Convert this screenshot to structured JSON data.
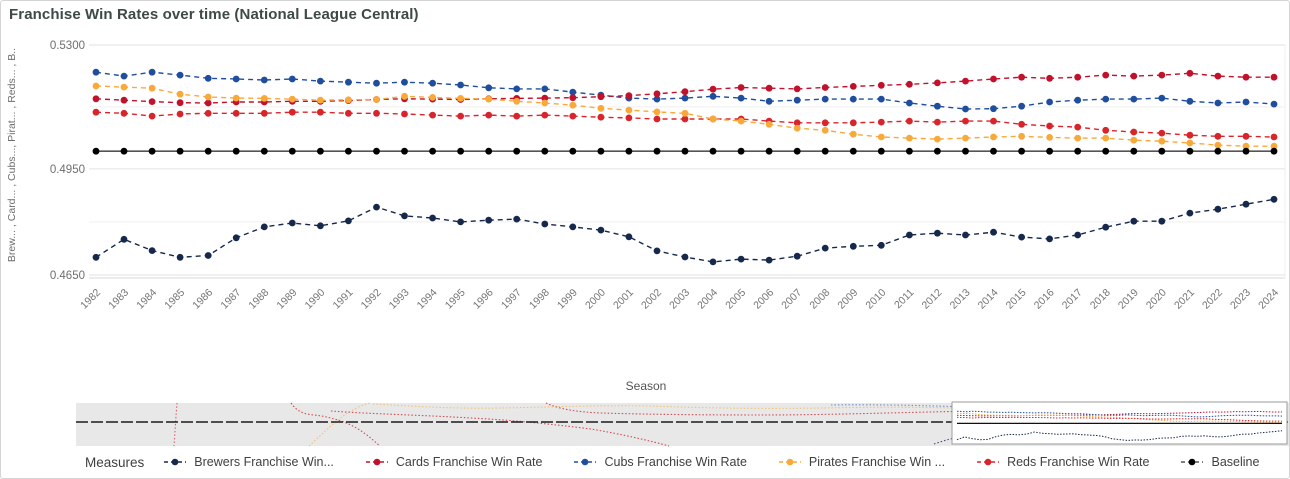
{
  "title": "Franchise Win Rates over time (National League Central)",
  "colors": {
    "title_text": "#3f4a44",
    "brewers": "#16294c",
    "cards": "#c1112b",
    "cubs": "#1f4e9e",
    "pirates": "#f9a93a",
    "reds": "#d8252c",
    "baseline_dot": "#000000",
    "baseline_line": "#555555",
    "grid_major": "#e2e2e2",
    "grid_minor": "#efefef",
    "axis_line": "#d9d9d9",
    "tick_text": "#757575",
    "navigator_bg": "#e8e8e8",
    "navigator_selection_border": "#9b9b9b"
  },
  "chart_data": {
    "type": "line",
    "title": "Franchise Win Rates over time (National League Central)",
    "xlabel": "Season",
    "ylabel": "Brew... , Card... , Cubs..., Pirat... , Reds... , B..",
    "x": [
      1982,
      1983,
      1984,
      1985,
      1986,
      1987,
      1988,
      1989,
      1990,
      1991,
      1992,
      1993,
      1994,
      1995,
      1996,
      1997,
      1998,
      1999,
      2000,
      2001,
      2002,
      2003,
      2004,
      2005,
      2006,
      2007,
      2008,
      2009,
      2010,
      2011,
      2012,
      2013,
      2014,
      2015,
      2016,
      2017,
      2018,
      2019,
      2020,
      2021,
      2022,
      2023,
      2024
    ],
    "ylim": [
      0.464,
      0.532
    ],
    "grid": true,
    "legend_position": "bottom",
    "y_ticks": {
      "labels": [
        "0.5300",
        "0.4950",
        "0.4650"
      ],
      "values": [
        0.53,
        0.495,
        0.465
      ],
      "minor_values": [
        0.5125,
        0.48
      ]
    },
    "line_style": "dashed-with-dots",
    "series": [
      {
        "name": "Brewers Franchise Win...",
        "color": "#16294c",
        "values": [
          0.47,
          0.4751,
          0.4719,
          0.47,
          0.4705,
          0.4755,
          0.4786,
          0.4797,
          0.4789,
          0.4803,
          0.4842,
          0.4817,
          0.4811,
          0.48,
          0.4805,
          0.4808,
          0.4794,
          0.4786,
          0.4777,
          0.4758,
          0.4718,
          0.4701,
          0.4687,
          0.4695,
          0.4692,
          0.4703,
          0.4726,
          0.4731,
          0.4734,
          0.4763,
          0.4768,
          0.4763,
          0.4771,
          0.4757,
          0.4752,
          0.4763,
          0.4785,
          0.4802,
          0.4802,
          0.4825,
          0.4836,
          0.485,
          0.4864
        ]
      },
      {
        "name": "Cards Franchise Win Rate",
        "color": "#c1112b",
        "values": [
          0.5148,
          0.5144,
          0.514,
          0.5137,
          0.5136,
          0.5139,
          0.5139,
          0.5141,
          0.5141,
          0.5143,
          0.5146,
          0.5148,
          0.5147,
          0.5146,
          0.5148,
          0.5149,
          0.515,
          0.5151,
          0.5154,
          0.5157,
          0.5162,
          0.5168,
          0.5175,
          0.518,
          0.5178,
          0.5176,
          0.518,
          0.5183,
          0.5186,
          0.5189,
          0.5193,
          0.5198,
          0.5204,
          0.5209,
          0.5206,
          0.5209,
          0.5215,
          0.5212,
          0.5215,
          0.522,
          0.5212,
          0.5209,
          0.5209
        ]
      },
      {
        "name": "Cubs Franchise Win Rate",
        "color": "#1f4e9e",
        "values": [
          0.5223,
          0.5212,
          0.5223,
          0.5215,
          0.5206,
          0.5204,
          0.5201,
          0.5204,
          0.5198,
          0.5195,
          0.5192,
          0.5195,
          0.5192,
          0.5187,
          0.5179,
          0.5176,
          0.5176,
          0.5167,
          0.5158,
          0.515,
          0.5147,
          0.515,
          0.5155,
          0.515,
          0.5141,
          0.5144,
          0.5147,
          0.5147,
          0.5147,
          0.5136,
          0.5127,
          0.5119,
          0.512,
          0.5127,
          0.5139,
          0.5144,
          0.5147,
          0.5147,
          0.515,
          0.5141,
          0.5136,
          0.5139,
          0.5133
        ]
      },
      {
        "name": "Pirates Franchise Win ...",
        "color": "#f9a93a",
        "values": [
          0.5184,
          0.5181,
          0.5178,
          0.5161,
          0.5153,
          0.515,
          0.5149,
          0.5147,
          0.5144,
          0.5145,
          0.5146,
          0.5155,
          0.5152,
          0.5149,
          0.5147,
          0.5141,
          0.5136,
          0.513,
          0.5121,
          0.5116,
          0.5111,
          0.5107,
          0.5091,
          0.5085,
          0.5076,
          0.5065,
          0.5059,
          0.5048,
          0.504,
          0.5037,
          0.5034,
          0.5037,
          0.504,
          0.5042,
          0.5039,
          0.5037,
          0.5037,
          0.5031,
          0.5028,
          0.5023,
          0.5017,
          0.5014,
          0.5014
        ]
      },
      {
        "name": "Reds Franchise Win Rate",
        "color": "#d8252c",
        "values": [
          0.511,
          0.5107,
          0.5099,
          0.5105,
          0.5107,
          0.5107,
          0.5107,
          0.511,
          0.511,
          0.5107,
          0.5107,
          0.5105,
          0.5102,
          0.5099,
          0.5102,
          0.5099,
          0.5102,
          0.5099,
          0.5096,
          0.5094,
          0.5091,
          0.5091,
          0.5091,
          0.5091,
          0.5085,
          0.508,
          0.508,
          0.508,
          0.5082,
          0.5085,
          0.5082,
          0.5085,
          0.5085,
          0.5076,
          0.5071,
          0.5068,
          0.5059,
          0.5054,
          0.5051,
          0.5045,
          0.5042,
          0.5042,
          0.504
        ]
      },
      {
        "name": "Baseline",
        "color": "#000000",
        "line_color": "#555555",
        "style": "solid",
        "constant": 0.5
      }
    ]
  },
  "legend": {
    "title": "Measures",
    "items": [
      {
        "label": "Brewers Franchise Win...",
        "color": "#16294c"
      },
      {
        "label": "Cards Franchise Win Rate",
        "color": "#c1112b"
      },
      {
        "label": "Cubs Franchise Win Rate",
        "color": "#1f4e9e"
      },
      {
        "label": "Pirates Franchise Win ...",
        "color": "#f9a93a"
      },
      {
        "label": "Reds Franchise Win Rate",
        "color": "#d8252c"
      },
      {
        "label": "Baseline",
        "color": "#000000"
      }
    ]
  }
}
